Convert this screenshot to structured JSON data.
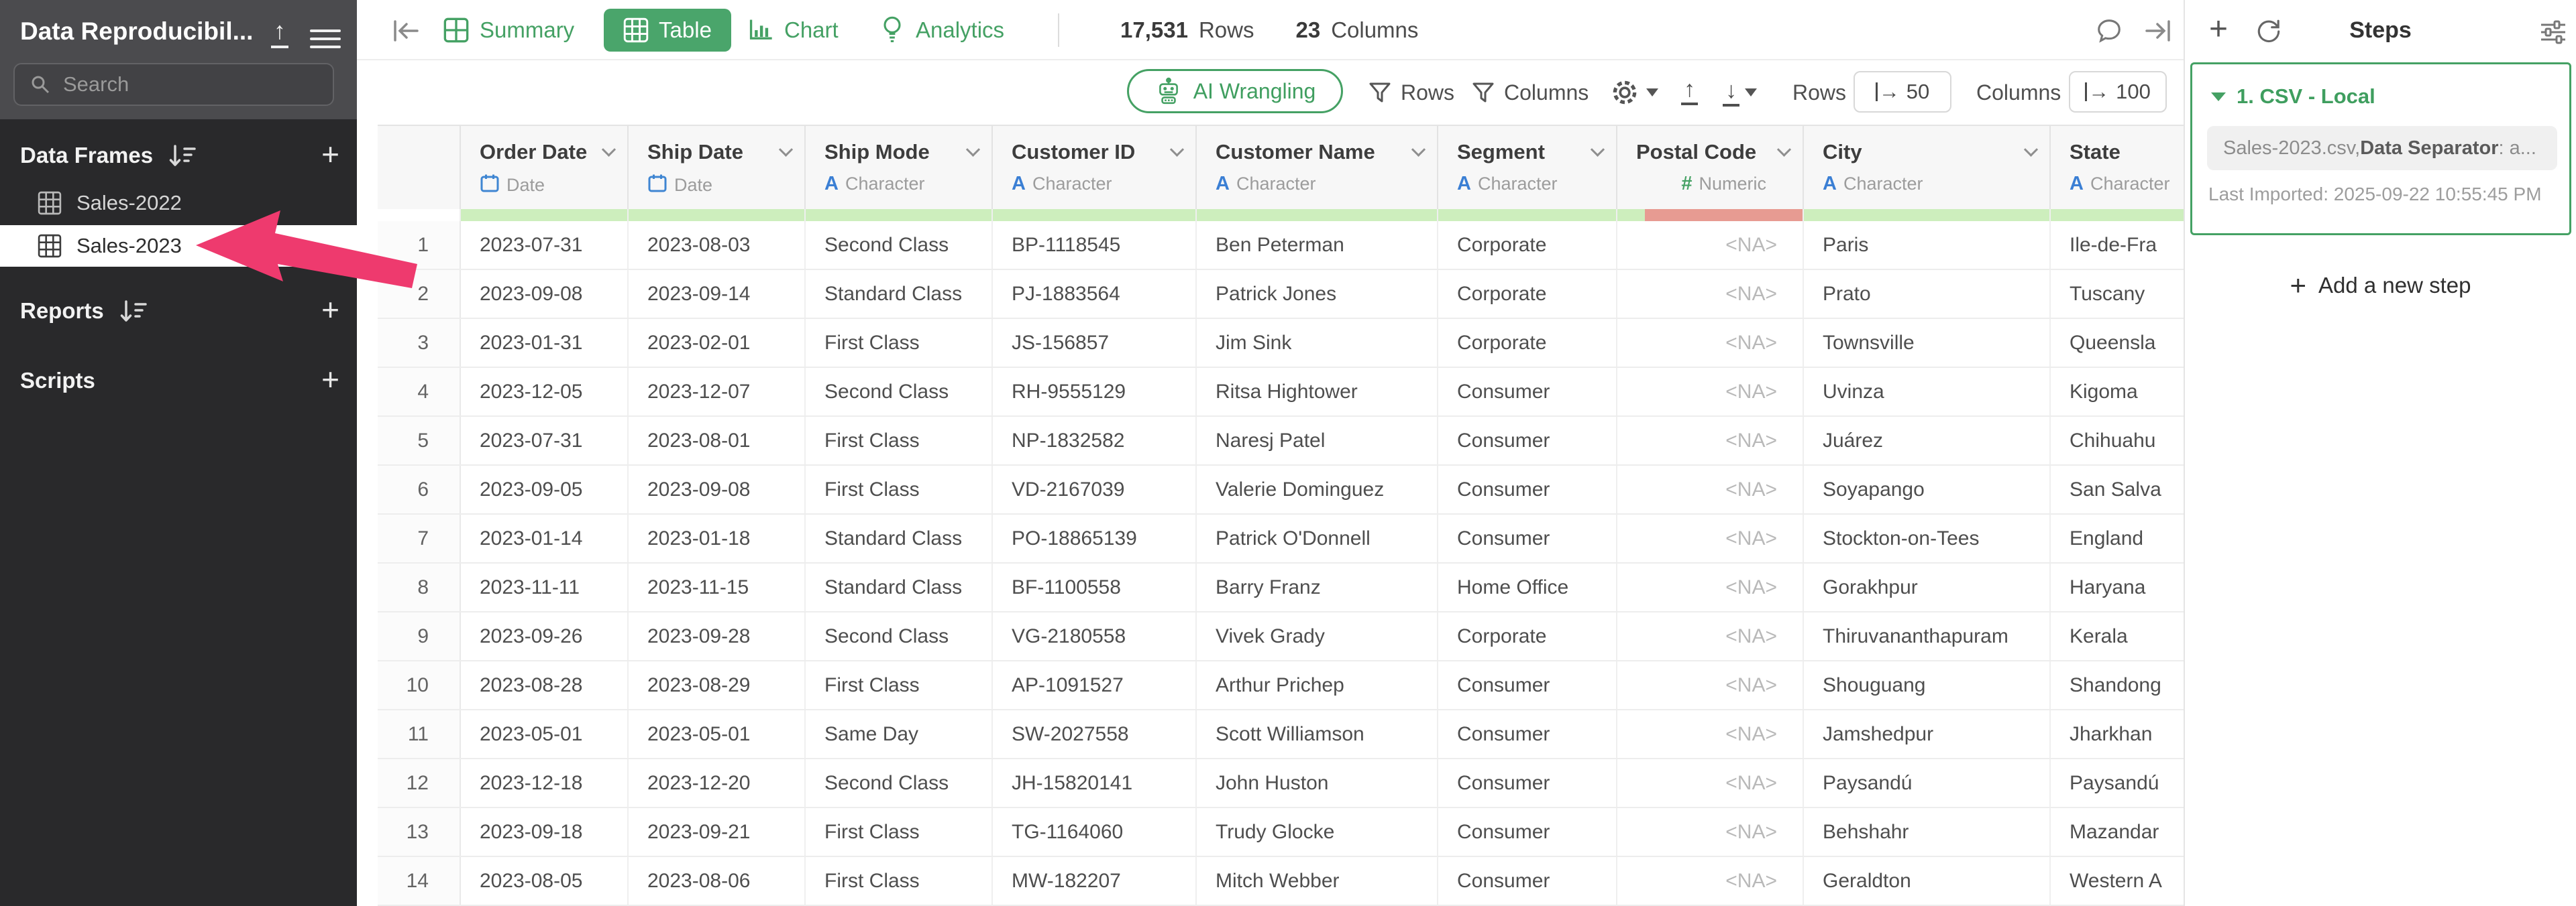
{
  "sidebar": {
    "title": "Data Reproducibil...",
    "search_placeholder": "Search",
    "sections": [
      {
        "label": "Data Frames",
        "items": [
          {
            "label": "Sales-2022",
            "selected": false
          },
          {
            "label": "Sales-2023",
            "selected": true
          }
        ]
      },
      {
        "label": "Reports",
        "items": []
      },
      {
        "label": "Scripts",
        "items": []
      }
    ]
  },
  "topbar": {
    "tabs": [
      {
        "label": "Summary",
        "active": false
      },
      {
        "label": "Table",
        "active": true
      },
      {
        "label": "Chart",
        "active": false
      },
      {
        "label": "Analytics",
        "active": false
      }
    ],
    "rows_count": "17,531",
    "rows_label": "Rows",
    "columns_count": "23",
    "columns_label": "Columns"
  },
  "toolbar": {
    "ai_button": "AI Wrangling",
    "rows_filter_label": "Rows",
    "columns_filter_label": "Columns",
    "rows_limit_label": "Rows",
    "rows_limit_value": "50",
    "columns_limit_label": "Columns",
    "columns_limit_value": "100"
  },
  "table": {
    "columns": [
      {
        "name": "Order Date",
        "type": "Date",
        "icon": "calendar",
        "quality": "good"
      },
      {
        "name": "Ship Date",
        "type": "Date",
        "icon": "calendar",
        "quality": "good"
      },
      {
        "name": "Ship Mode",
        "type": "Character",
        "icon": "A",
        "quality": "good"
      },
      {
        "name": "Customer ID",
        "type": "Character",
        "icon": "A",
        "quality": "good"
      },
      {
        "name": "Customer Name",
        "type": "Character",
        "icon": "A",
        "quality": "good"
      },
      {
        "name": "Segment",
        "type": "Character",
        "icon": "A",
        "quality": "good"
      },
      {
        "name": "Postal Code",
        "type": "Numeric",
        "icon": "#",
        "quality": "mostly-missing",
        "align": "right"
      },
      {
        "name": "City",
        "type": "Character",
        "icon": "A",
        "quality": "good"
      },
      {
        "name": "State",
        "type": "Character",
        "icon": "A",
        "quality": "good"
      }
    ],
    "rows": [
      [
        "1",
        "2023-07-31",
        "2023-08-03",
        "Second Class",
        "BP-1118545",
        "Ben Peterman",
        "Corporate",
        "<NA>",
        "Paris",
        "Ile-de-Fra"
      ],
      [
        "2",
        "2023-09-08",
        "2023-09-14",
        "Standard Class",
        "PJ-1883564",
        "Patrick Jones",
        "Corporate",
        "<NA>",
        "Prato",
        "Tuscany"
      ],
      [
        "3",
        "2023-01-31",
        "2023-02-01",
        "First Class",
        "JS-156857",
        "Jim Sink",
        "Corporate",
        "<NA>",
        "Townsville",
        "Queensla"
      ],
      [
        "4",
        "2023-12-05",
        "2023-12-07",
        "Second Class",
        "RH-9555129",
        "Ritsa Hightower",
        "Consumer",
        "<NA>",
        "Uvinza",
        "Kigoma"
      ],
      [
        "5",
        "2023-07-31",
        "2023-08-01",
        "First Class",
        "NP-1832582",
        "Naresj Patel",
        "Consumer",
        "<NA>",
        "Juárez",
        "Chihuahu"
      ],
      [
        "6",
        "2023-09-05",
        "2023-09-08",
        "First Class",
        "VD-2167039",
        "Valerie Dominguez",
        "Consumer",
        "<NA>",
        "Soyapango",
        "San Salva"
      ],
      [
        "7",
        "2023-01-14",
        "2023-01-18",
        "Standard Class",
        "PO-18865139",
        "Patrick O'Donnell",
        "Consumer",
        "<NA>",
        "Stockton-on-Tees",
        "England"
      ],
      [
        "8",
        "2023-11-11",
        "2023-11-15",
        "Standard Class",
        "BF-1100558",
        "Barry Franz",
        "Home Office",
        "<NA>",
        "Gorakhpur",
        "Haryana"
      ],
      [
        "9",
        "2023-09-26",
        "2023-09-28",
        "Second Class",
        "VG-2180558",
        "Vivek Grady",
        "Corporate",
        "<NA>",
        "Thiruvananthapuram",
        "Kerala"
      ],
      [
        "10",
        "2023-08-28",
        "2023-08-29",
        "First Class",
        "AP-1091527",
        "Arthur Prichep",
        "Consumer",
        "<NA>",
        "Shouguang",
        "Shandong"
      ],
      [
        "11",
        "2023-05-01",
        "2023-05-01",
        "Same Day",
        "SW-2027558",
        "Scott Williamson",
        "Consumer",
        "<NA>",
        "Jamshedpur",
        "Jharkhan"
      ],
      [
        "12",
        "2023-12-18",
        "2023-12-20",
        "Second Class",
        "JH-15820141",
        "John Huston",
        "Consumer",
        "<NA>",
        "Paysandú",
        "Paysandú"
      ],
      [
        "13",
        "2023-09-18",
        "2023-09-21",
        "First Class",
        "TG-1164060",
        "Trudy Glocke",
        "Consumer",
        "<NA>",
        "Behshahr",
        "Mazandar"
      ],
      [
        "14",
        "2023-08-05",
        "2023-08-06",
        "First Class",
        "MW-182207",
        "Mitch Webber",
        "Consumer",
        "<NA>",
        "Geraldton",
        "Western A"
      ]
    ]
  },
  "steps_panel": {
    "title": "Steps",
    "step": {
      "label": "1. CSV - Local",
      "summary_file": "Sales-2023.csv, ",
      "summary_bold": "Data Separator",
      "summary_tail": ": a...",
      "last_imported": "Last Imported: 2025-09-22 10:55:45 PM"
    },
    "add_step_label": "Add a new step"
  },
  "icons": {
    "sidebar_upload": "up-arrow-underline",
    "sidebar_menu": "hamburger",
    "search": "magnifier",
    "sort": "sort-descending",
    "add": "plus",
    "dataframe": "table-grid",
    "collapse_left": "bar-arrow-left",
    "summary": "grid-2x2",
    "table": "grid-3x3",
    "chart": "bar-chart",
    "analytics": "lightbulb",
    "comment": "speech-bubble",
    "collapse_right": "arrow-to-bar",
    "refresh": "circular-arrow",
    "panel_settings": "sliders",
    "ai": "robot",
    "filter": "funnel",
    "settings": "gear",
    "export": "up-arrow-underline",
    "download": "down-arrow-underline",
    "limit": "maps-to-arrow",
    "column_menu": "chevron-down",
    "date_type": "calendar",
    "character_type": "letter-A",
    "numeric_type": "hash",
    "annotation": "pink-arrow-left",
    "step_collapse": "triangle-down"
  },
  "colors": {
    "accent_green": "#45a164",
    "active_tab_bg": "#4aa56b",
    "quality_good": "#cdeebd",
    "quality_bad": "#e79b92",
    "sidebar_bg": "#29292b",
    "sidebar_top_bg": "#4b4b4e",
    "selected_item_bg": "#ffffff",
    "annotation_pink": "#ee3a6e",
    "type_blue": "#3b7fd4"
  }
}
